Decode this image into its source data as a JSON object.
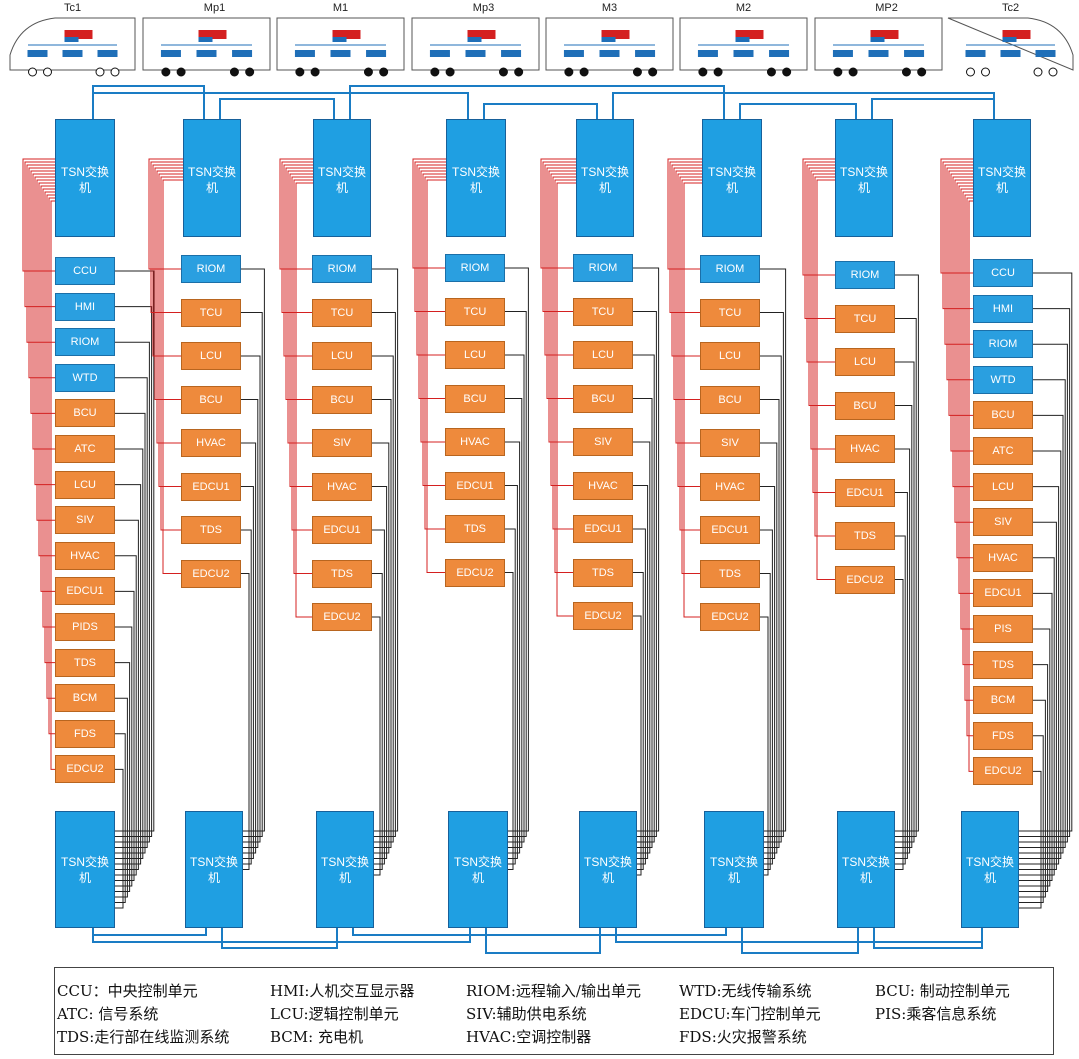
{
  "cars": [
    "Tc1",
    "Mp1",
    "M1",
    "Mp3",
    "M3",
    "M2",
    "MP2",
    "Tc2"
  ],
  "switch_label": "TSN交换机",
  "columns": [
    {
      "devices": [
        {
          "label": "CCU",
          "kind": "blue"
        },
        {
          "label": "HMI",
          "kind": "blue"
        },
        {
          "label": "RIOM",
          "kind": "blue"
        },
        {
          "label": "WTD",
          "kind": "blue"
        },
        {
          "label": "BCU",
          "kind": "orange"
        },
        {
          "label": "ATC",
          "kind": "orange"
        },
        {
          "label": "LCU",
          "kind": "orange"
        },
        {
          "label": "SIV",
          "kind": "orange"
        },
        {
          "label": "HVAC",
          "kind": "orange"
        },
        {
          "label": "EDCU1",
          "kind": "orange"
        },
        {
          "label": "PIDS",
          "kind": "orange"
        },
        {
          "label": "TDS",
          "kind": "orange"
        },
        {
          "label": "BCM",
          "kind": "orange"
        },
        {
          "label": "FDS",
          "kind": "orange"
        },
        {
          "label": "EDCU2",
          "kind": "orange"
        }
      ]
    },
    {
      "devices": [
        {
          "label": "RIOM",
          "kind": "blue"
        },
        {
          "label": "TCU",
          "kind": "orange"
        },
        {
          "label": "LCU",
          "kind": "orange"
        },
        {
          "label": "BCU",
          "kind": "orange"
        },
        {
          "label": "HVAC",
          "kind": "orange"
        },
        {
          "label": "EDCU1",
          "kind": "orange"
        },
        {
          "label": "TDS",
          "kind": "orange"
        },
        {
          "label": "EDCU2",
          "kind": "orange"
        }
      ]
    },
    {
      "devices": [
        {
          "label": "RIOM",
          "kind": "blue"
        },
        {
          "label": "TCU",
          "kind": "orange"
        },
        {
          "label": "LCU",
          "kind": "orange"
        },
        {
          "label": "BCU",
          "kind": "orange"
        },
        {
          "label": "SIV",
          "kind": "orange"
        },
        {
          "label": "HVAC",
          "kind": "orange"
        },
        {
          "label": "EDCU1",
          "kind": "orange"
        },
        {
          "label": "TDS",
          "kind": "orange"
        },
        {
          "label": "EDCU2",
          "kind": "orange"
        }
      ]
    },
    {
      "devices": [
        {
          "label": "RIOM",
          "kind": "blue"
        },
        {
          "label": "TCU",
          "kind": "orange"
        },
        {
          "label": "LCU",
          "kind": "orange"
        },
        {
          "label": "BCU",
          "kind": "orange"
        },
        {
          "label": "HVAC",
          "kind": "orange"
        },
        {
          "label": "EDCU1",
          "kind": "orange"
        },
        {
          "label": "TDS",
          "kind": "orange"
        },
        {
          "label": "EDCU2",
          "kind": "orange"
        }
      ]
    },
    {
      "devices": [
        {
          "label": "RIOM",
          "kind": "blue"
        },
        {
          "label": "TCU",
          "kind": "orange"
        },
        {
          "label": "LCU",
          "kind": "orange"
        },
        {
          "label": "BCU",
          "kind": "orange"
        },
        {
          "label": "SIV",
          "kind": "orange"
        },
        {
          "label": "HVAC",
          "kind": "orange"
        },
        {
          "label": "EDCU1",
          "kind": "orange"
        },
        {
          "label": "TDS",
          "kind": "orange"
        },
        {
          "label": "EDCU2",
          "kind": "orange"
        }
      ]
    },
    {
      "devices": [
        {
          "label": "RIOM",
          "kind": "blue"
        },
        {
          "label": "TCU",
          "kind": "orange"
        },
        {
          "label": "LCU",
          "kind": "orange"
        },
        {
          "label": "BCU",
          "kind": "orange"
        },
        {
          "label": "SIV",
          "kind": "orange"
        },
        {
          "label": "HVAC",
          "kind": "orange"
        },
        {
          "label": "EDCU1",
          "kind": "orange"
        },
        {
          "label": "TDS",
          "kind": "orange"
        },
        {
          "label": "EDCU2",
          "kind": "orange"
        }
      ]
    },
    {
      "devices": [
        {
          "label": "RIOM",
          "kind": "blue"
        },
        {
          "label": "TCU",
          "kind": "orange"
        },
        {
          "label": "LCU",
          "kind": "orange"
        },
        {
          "label": "BCU",
          "kind": "orange"
        },
        {
          "label": "HVAC",
          "kind": "orange"
        },
        {
          "label": "EDCU1",
          "kind": "orange"
        },
        {
          "label": "TDS",
          "kind": "orange"
        },
        {
          "label": "EDCU2",
          "kind": "orange"
        }
      ]
    },
    {
      "devices": [
        {
          "label": "CCU",
          "kind": "blue"
        },
        {
          "label": "HMI",
          "kind": "blue"
        },
        {
          "label": "RIOM",
          "kind": "blue"
        },
        {
          "label": "WTD",
          "kind": "blue"
        },
        {
          "label": "BCU",
          "kind": "orange"
        },
        {
          "label": "ATC",
          "kind": "orange"
        },
        {
          "label": "LCU",
          "kind": "orange"
        },
        {
          "label": "SIV",
          "kind": "orange"
        },
        {
          "label": "HVAC",
          "kind": "orange"
        },
        {
          "label": "EDCU1",
          "kind": "orange"
        },
        {
          "label": "PIS",
          "kind": "orange"
        },
        {
          "label": "TDS",
          "kind": "orange"
        },
        {
          "label": "BCM",
          "kind": "orange"
        },
        {
          "label": "FDS",
          "kind": "orange"
        },
        {
          "label": "EDCU2",
          "kind": "orange"
        }
      ]
    }
  ],
  "legend": [
    [
      "CCU：中央控制单元",
      "HMI:人机交互显示器",
      "RIOM:远程输入/输出单元",
      "WTD:无线传输系统",
      "BCU: 制动控制单元"
    ],
    [
      "ATC: 信号系统",
      "LCU:逻辑控制单元",
      "SIV:辅助供电系统",
      "EDCU:车门控制单元",
      "PIS:乘客信息系统"
    ],
    [
      "TDS:走行部在线监测系统",
      "BCM: 充电机",
      "HVAC:空调控制器",
      "FDS:火灾报警系统",
      ""
    ]
  ],
  "colors": {
    "blue_box": "#2a9fe0",
    "orange_box": "#ee8a3c",
    "tsn_box": "#1f9fe2",
    "ring_line": "#1a7cc4",
    "red_line": "#d42020",
    "black_line": "#222222"
  }
}
